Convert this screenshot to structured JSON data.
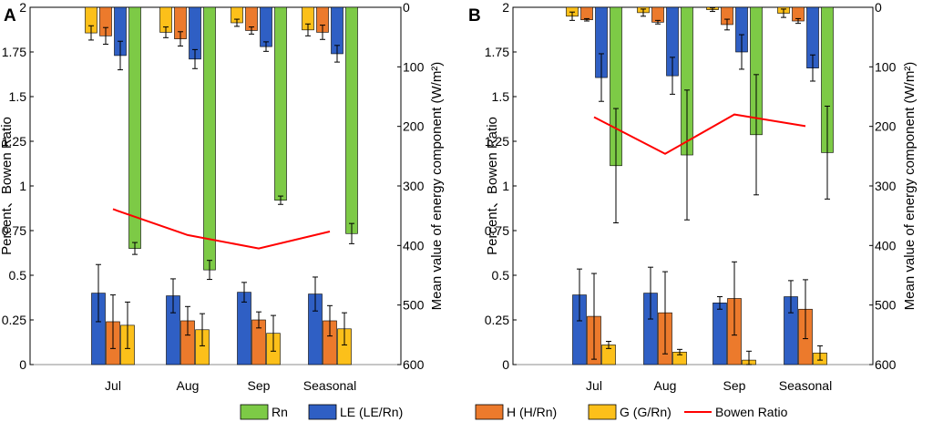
{
  "chart_data": [
    {
      "panel": "A",
      "type": "bar",
      "categories": [
        "Jul",
        "Aug",
        "Sep",
        "Seasonal"
      ],
      "left_axis": {
        "label": "Percent、Bowen Ratio",
        "ylim": [
          0,
          2
        ],
        "ticks": [
          0,
          0.25,
          0.5,
          0.75,
          1,
          1.25,
          1.5,
          1.75,
          2
        ],
        "tick_labels": [
          "0",
          "0.25",
          "0.5",
          "0.75",
          "1",
          "1.25",
          "1.5",
          "1.75",
          "2"
        ]
      },
      "right_axis": {
        "label": "Mean value of energy component (W/m²)",
        "ylim": [
          0,
          600
        ],
        "inverted": true,
        "ticks": [
          0,
          100,
          200,
          300,
          400,
          500,
          600
        ],
        "tick_labels": [
          "0",
          "100",
          "200",
          "300",
          "400",
          "500",
          "600"
        ]
      },
      "percent_series": [
        {
          "name": "LE (LE/Rn)",
          "values": [
            0.4,
            0.385,
            0.405,
            0.395
          ],
          "errors": [
            0.16,
            0.095,
            0.055,
            0.095
          ]
        },
        {
          "name": "H (H/Rn)",
          "values": [
            0.24,
            0.245,
            0.25,
            0.245
          ],
          "errors": [
            0.15,
            0.08,
            0.045,
            0.085
          ]
        },
        {
          "name": "G (G/Rn)",
          "values": [
            0.22,
            0.195,
            0.175,
            0.2
          ],
          "errors": [
            0.13,
            0.09,
            0.1,
            0.09
          ]
        }
      ],
      "energy_series": [
        {
          "name": "G (G/Rn)",
          "values": [
            43,
            42,
            26,
            38
          ],
          "errors": [
            12,
            9,
            6,
            10
          ]
        },
        {
          "name": "H (H/Rn)",
          "values": [
            48,
            53,
            39,
            42
          ],
          "errors": [
            14,
            12,
            6,
            12
          ]
        },
        {
          "name": "LE (LE/Rn)",
          "values": [
            81,
            87,
            66,
            78
          ],
          "errors": [
            24,
            16,
            8,
            14
          ]
        },
        {
          "name": "Rn",
          "values": [
            405,
            441,
            324,
            380
          ],
          "errors": [
            10,
            16,
            7,
            17
          ]
        }
      ],
      "bowen_ratio": [
        0.87,
        0.725,
        0.65,
        0.745
      ]
    },
    {
      "panel": "B",
      "type": "bar",
      "categories": [
        "Jul",
        "Aug",
        "Sep",
        "Seasonal"
      ],
      "left_axis": {
        "label": "Percent、Bowen Ratio",
        "ylim": [
          0,
          2
        ],
        "ticks": [
          0,
          0.25,
          0.5,
          0.75,
          1,
          1.25,
          1.5,
          1.75,
          2
        ],
        "tick_labels": [
          "0",
          "0.25",
          "0.5",
          "0.75",
          "1",
          "1.25",
          "1.5",
          "1.75",
          "2"
        ]
      },
      "right_axis": {
        "label": "Mean value of energy component (W/m²)",
        "ylim": [
          0,
          600
        ],
        "inverted": true,
        "ticks": [
          0,
          100,
          200,
          300,
          400,
          500,
          600
        ],
        "tick_labels": [
          "0",
          "100",
          "200",
          "300",
          "400",
          "500",
          "600"
        ]
      },
      "percent_series": [
        {
          "name": "LE (LE/Rn)",
          "values": [
            0.39,
            0.4,
            0.345,
            0.38
          ],
          "errors": [
            0.145,
            0.145,
            0.035,
            0.09
          ]
        },
        {
          "name": "H (H/Rn)",
          "values": [
            0.27,
            0.29,
            0.37,
            0.31
          ],
          "errors": [
            0.24,
            0.23,
            0.205,
            0.165
          ]
        },
        {
          "name": "G (G/Rn)",
          "values": [
            0.11,
            0.07,
            0.025,
            0.065
          ],
          "errors": [
            0.02,
            0.015,
            0.05,
            0.04
          ]
        }
      ],
      "energy_series": [
        {
          "name": "G (G/Rn)",
          "values": [
            15,
            9,
            4,
            10
          ],
          "errors": [
            7,
            6,
            3,
            7
          ]
        },
        {
          "name": "H (H/Rn)",
          "values": [
            21,
            25,
            29,
            23
          ],
          "errors": [
            2,
            3,
            9,
            4
          ]
        },
        {
          "name": "LE (LE/Rn)",
          "values": [
            118,
            115,
            75,
            102
          ],
          "errors": [
            40,
            31,
            29,
            22
          ]
        },
        {
          "name": "Rn",
          "values": [
            266,
            248,
            214,
            244
          ],
          "errors": [
            96,
            109,
            101,
            78
          ]
        }
      ],
      "bowen_ratio": [
        1.385,
        1.18,
        1.4,
        1.335
      ]
    }
  ],
  "legend": [
    {
      "label": "Rn",
      "kind": "patch",
      "color": "#7dca46"
    },
    {
      "label": "LE (LE/Rn)",
      "kind": "patch",
      "color": "#2f5fc4"
    },
    {
      "label": "H (H/Rn)",
      "kind": "patch",
      "color": "#ec7a2c"
    },
    {
      "label": "G (G/Rn)",
      "kind": "patch",
      "color": "#fcc01a"
    },
    {
      "label": "Bowen Ratio",
      "kind": "line",
      "color": "#ff0000"
    }
  ],
  "colors": {
    "Rn": "#7dca46",
    "LE (LE/Rn)": "#2f5fc4",
    "H (H/Rn)": "#ec7a2c",
    "G (G/Rn)": "#fcc01a",
    "Bowen Ratio": "#ff0000"
  }
}
